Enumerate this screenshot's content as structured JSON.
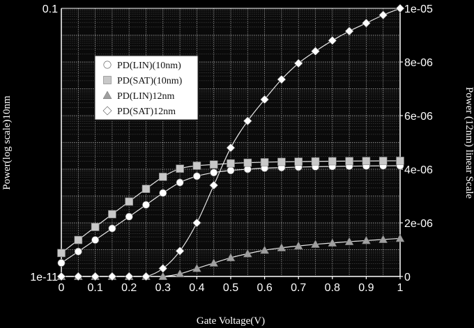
{
  "chart_data": {
    "type": "line",
    "xlabel": "Gate Voltage(V)",
    "ylabel_left": "Power(log scale)10nm",
    "ylabel_right": "Power (12nm) linear Scale",
    "xlim": [
      0,
      1
    ],
    "x_ticks": [
      "0",
      "0.1",
      "0.2",
      "0.3",
      "0.4",
      "0.5",
      "0.6",
      "0.7",
      "0.8",
      "0.9",
      "1"
    ],
    "y_left_scale": "log",
    "y_left_lim": [
      1e-11,
      0.1
    ],
    "y_left_ticks": [
      "1e-11",
      "0.1"
    ],
    "y_right_lim": [
      0,
      1e-05
    ],
    "y_right_ticks": [
      "0",
      "2e-06",
      "4e-06",
      "6e-06",
      "8e-06",
      "1e-05"
    ],
    "grid": true,
    "legend_position": "upper-left",
    "x": [
      0,
      0.05,
      0.1,
      0.15,
      0.2,
      0.25,
      0.3,
      0.35,
      0.4,
      0.45,
      0.5,
      0.55,
      0.6,
      0.65,
      0.7,
      0.75,
      0.8,
      0.85,
      0.9,
      0.95,
      1.0
    ],
    "series": [
      {
        "name": "PD(LIN)(10nm)",
        "marker": "circle",
        "axis": "left",
        "values": [
          3.2e-11,
          8.5e-11,
          2.3e-10,
          6.2e-10,
          1.7e-09,
          4.7e-09,
          1.3e-08,
          3.2e-08,
          5.5e-08,
          7.5e-08,
          9e-08,
          1e-07,
          1.1e-07,
          1.15e-07,
          1.2e-07,
          1.24e-07,
          1.27e-07,
          1.3e-07,
          1.32e-07,
          1.34e-07,
          1.35e-07
        ]
      },
      {
        "name": "PD(SAT)(10nm)",
        "marker": "square",
        "axis": "left",
        "values": [
          7.5e-11,
          2.3e-10,
          7e-10,
          2.1e-09,
          6.2e-09,
          1.85e-08,
          5.2e-08,
          1.05e-07,
          1.35e-07,
          1.5e-07,
          1.65e-07,
          1.75e-07,
          1.82e-07,
          1.88e-07,
          1.92e-07,
          1.96e-07,
          1.99e-07,
          2.01e-07,
          2.03e-07,
          2.05e-07,
          2.06e-07
        ]
      },
      {
        "name": "PD(LIN)12nm",
        "marker": "triangle",
        "axis": "right",
        "values": [
          0,
          0,
          0,
          0,
          0,
          0,
          0,
          1e-07,
          3e-07,
          5e-07,
          7e-07,
          8.5e-07,
          9.8e-07,
          1.07e-06,
          1.14e-06,
          1.2e-06,
          1.25e-06,
          1.3e-06,
          1.34e-06,
          1.38e-06,
          1.42e-06
        ]
      },
      {
        "name": "PD(SAT)12nm",
        "marker": "diamond",
        "axis": "right",
        "values": [
          0,
          0,
          0,
          0,
          0,
          0,
          3e-07,
          9.5e-07,
          2e-06,
          3.4e-06,
          4.8e-06,
          5.8e-06,
          6.6e-06,
          7.35e-06,
          7.95e-06,
          8.4e-06,
          8.8e-06,
          9.15e-06,
          9.45e-06,
          9.75e-06,
          1e-05
        ]
      }
    ]
  },
  "colors": {
    "background": "#000000",
    "plot_area": "#0a0a0a",
    "grid": "#9a9a9a",
    "circle_marker": "#ffffff",
    "square_marker": "#c8c8c8",
    "triangle_marker": "#a0a0a0",
    "diamond_marker": "#ffffff",
    "legend_bg": "#ffffff"
  }
}
